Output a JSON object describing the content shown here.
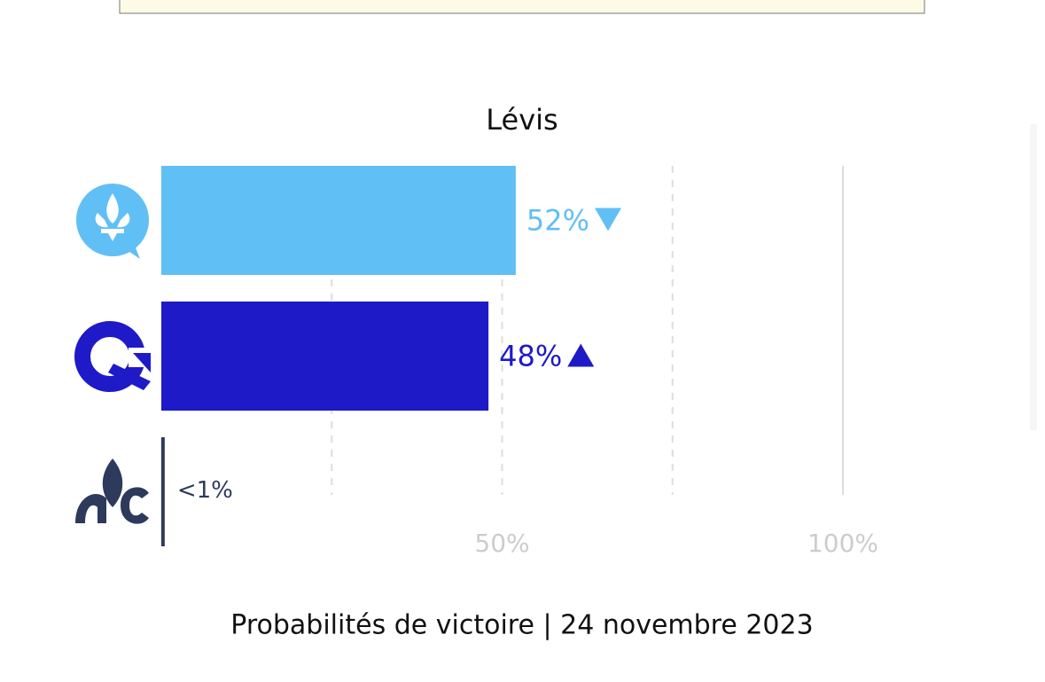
{
  "chart_data": {
    "type": "barh",
    "title": "Lévis",
    "categories": [
      null,
      null,
      null
    ],
    "values": [
      52,
      48,
      0.5
    ],
    "value_labels": [
      "52%",
      "48%",
      "<1%"
    ],
    "colors": [
      "#60bff5",
      "#1e1ac8",
      "#2d3a5c"
    ],
    "label_colors": [
      "#60bff5",
      "#1e1ac8",
      "#2d3a5c"
    ],
    "trends": [
      "down",
      "up",
      null
    ],
    "xlim": [
      0,
      100
    ],
    "xticks": [
      {
        "value": 25,
        "label": null
      },
      {
        "value": 50,
        "label": "50%"
      },
      {
        "value": 75,
        "label": null
      },
      {
        "value": 100,
        "label": "100%"
      }
    ],
    "grid": true,
    "footer": "Probabilités de victoire | 24 novembre 2023"
  }
}
